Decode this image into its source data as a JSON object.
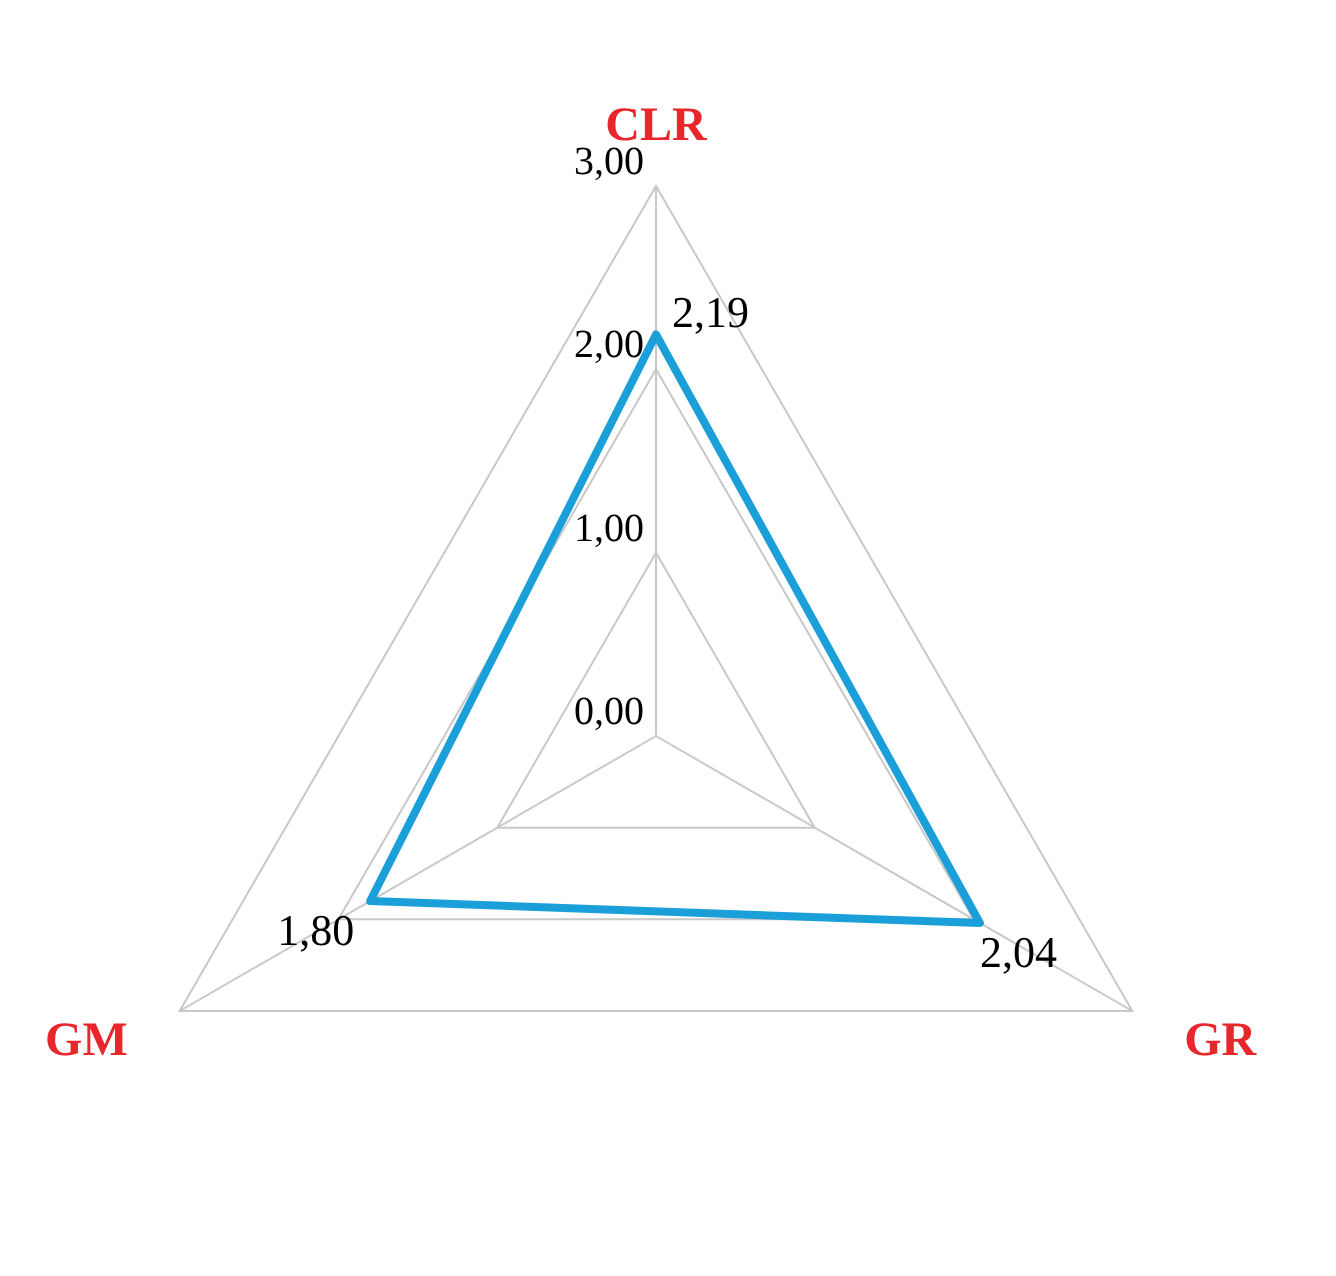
{
  "chart_data": {
    "type": "radar",
    "categories": [
      "CLR",
      "GR",
      "GM"
    ],
    "series": [
      {
        "color": "#1a9fd9",
        "values": [
          2.19,
          2.04,
          1.8
        ],
        "value_labels": [
          "2,19",
          "2,04",
          "1,80"
        ]
      }
    ],
    "ylim": [
      0,
      3
    ],
    "yticks": [
      {
        "value": 0,
        "label": "0,00"
      },
      {
        "value": 1,
        "label": "1,00"
      },
      {
        "value": 2,
        "label": "2,00"
      },
      {
        "value": 3,
        "label": "3,00"
      }
    ],
    "grid": true,
    "marker": "none"
  }
}
